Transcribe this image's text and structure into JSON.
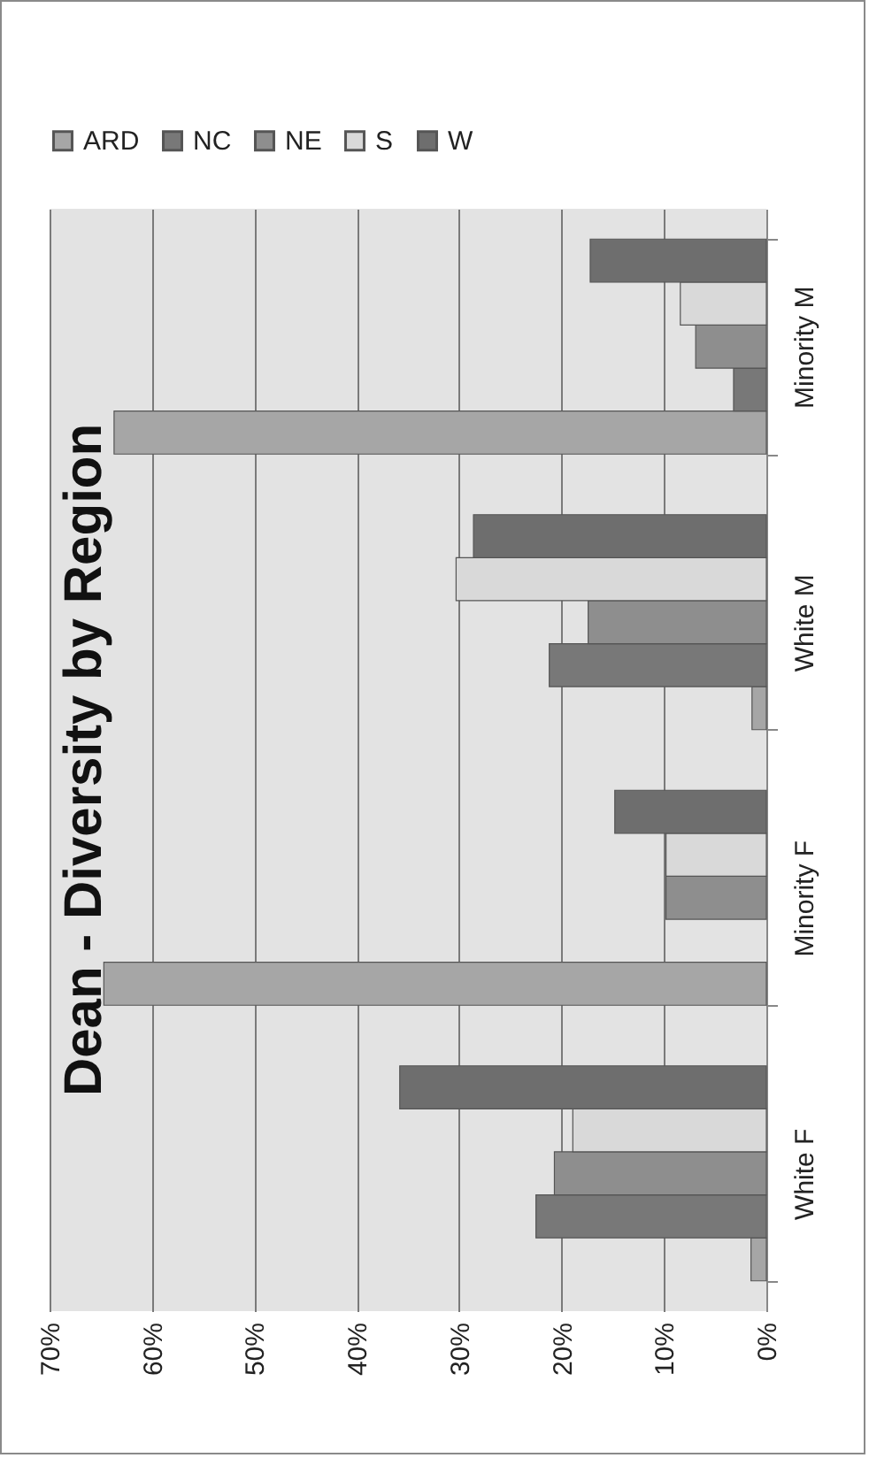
{
  "chart_data": {
    "type": "bar",
    "orientation": "horizontal",
    "title": "Dean - Diversity by Region",
    "categories": [
      "Minority M",
      "White M",
      "Minority F",
      "White F"
    ],
    "series": [
      {
        "name": "ARD",
        "color": "#a6a6a6",
        "values": [
          63.7,
          1.4,
          64.7,
          1.5
        ]
      },
      {
        "name": "NC",
        "color": "#787878",
        "values": [
          3.2,
          21.2,
          null,
          22.5
        ]
      },
      {
        "name": "NE",
        "color": "#8e8e8e",
        "values": [
          6.9,
          17.4,
          9.8,
          20.7
        ]
      },
      {
        "name": "S",
        "color": "#d9d9d9",
        "values": [
          8.4,
          30.3,
          9.8,
          18.9
        ]
      },
      {
        "name": "W",
        "color": "#6e6e6e",
        "values": [
          17.2,
          28.6,
          14.8,
          35.8
        ]
      }
    ],
    "xlim": [
      70,
      0
    ],
    "xticks": [
      {
        "value": 70,
        "label": "70%"
      },
      {
        "value": 60,
        "label": "60%"
      },
      {
        "value": 50,
        "label": "50%"
      },
      {
        "value": 40,
        "label": "40%"
      },
      {
        "value": 30,
        "label": "30%"
      },
      {
        "value": 20,
        "label": "20%"
      },
      {
        "value": 10,
        "label": "10%"
      },
      {
        "value": 0,
        "label": "0%"
      }
    ],
    "grid": true,
    "legend": "top"
  }
}
